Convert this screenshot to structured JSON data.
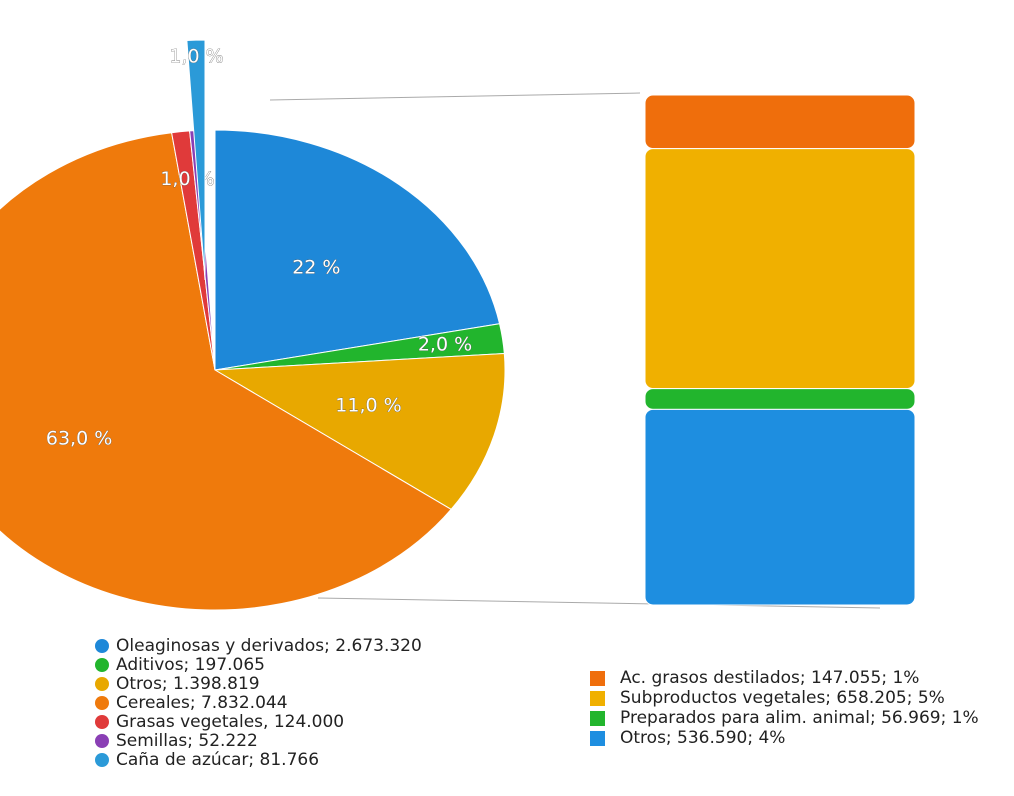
{
  "chart_data": [
    {
      "type": "pie",
      "categories": [
        "Oleaginosas y derivados; 2.673.320",
        "Aditivos; 197.065",
        "Otros; 1.398.819",
        "Cereales; 7.832.044",
        "Grasas vegetales, 124.000",
        "Semillas; 52.222",
        "Caña de azúcar; 81.766"
      ],
      "values": [
        22,
        2,
        11,
        63,
        1,
        0.4,
        1
      ],
      "value_labels": [
        "22 %",
        "2,0 %",
        "11,0 %",
        "63,0 %",
        "1,0 %",
        null,
        "1,0 %"
      ],
      "colors": [
        "#1e88d8",
        "#22b52d",
        "#e8a800",
        "#ef7a0c",
        "#e03a3a",
        "#8a3fb5",
        "#2b9ad8"
      ]
    },
    {
      "type": "bar",
      "categories": [
        "Ac. grasos destilados; 147.055; 1%",
        "Subproductos vegetales; 658.205; 5%",
        "Preparados para alim. animal; 56.969; 1%",
        "Otros; 536.590; 4%"
      ],
      "values": [
        147055,
        658205,
        56969,
        536590
      ],
      "colors": [
        "#ef6e0c",
        "#f0b000",
        "#22b52d",
        "#1e8ee0"
      ]
    }
  ]
}
